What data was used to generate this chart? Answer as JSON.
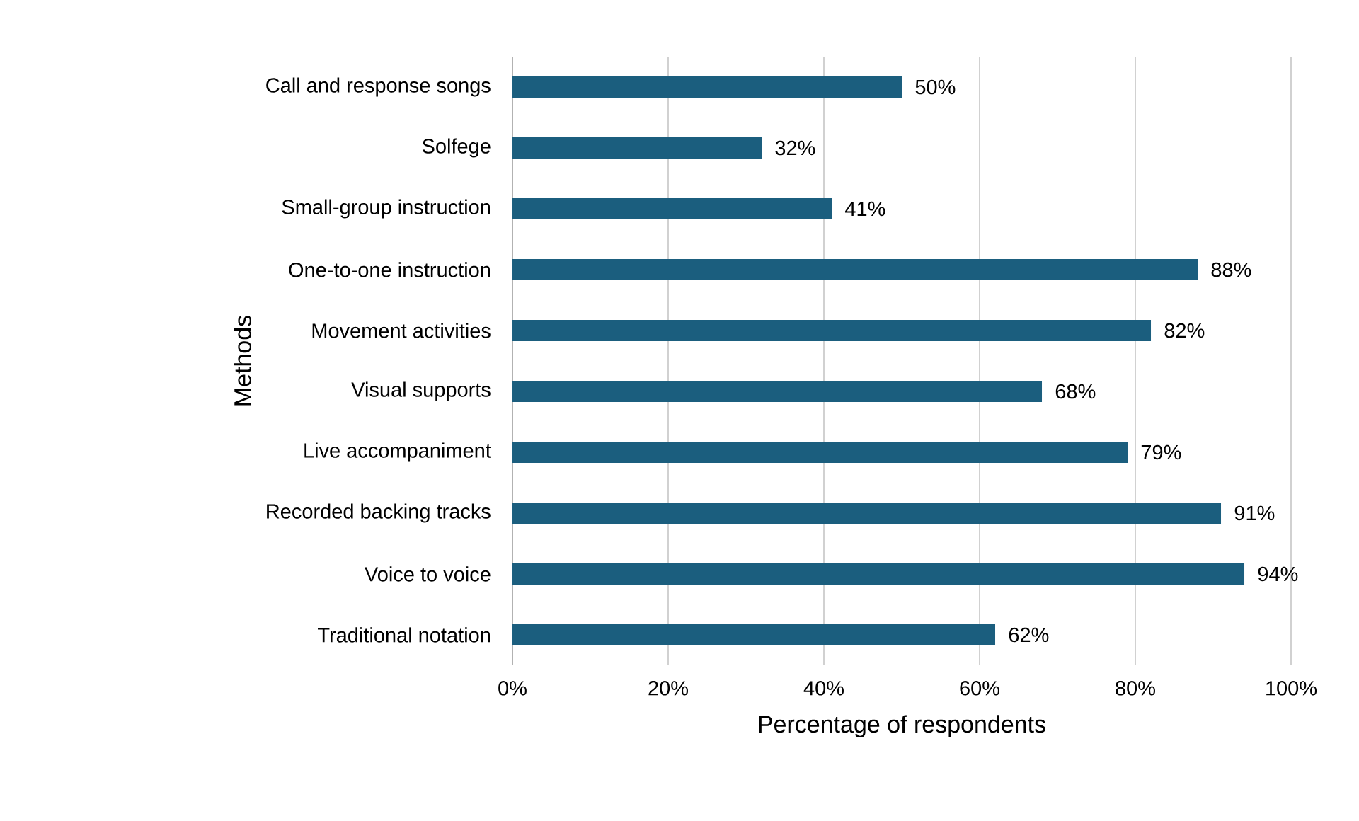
{
  "chart_data": {
    "type": "bar",
    "orientation": "horizontal",
    "xlabel": "Percentage of respondents",
    "ylabel": "Methods",
    "categories": [
      "Call and response songs",
      "Solfege",
      "Small-group instruction",
      "One-to-one instruction",
      "Movement activities",
      "Visual supports",
      "Live accompaniment",
      "Recorded backing tracks",
      "Voice to voice",
      "Traditional notation"
    ],
    "values": [
      50,
      32,
      41,
      88,
      82,
      68,
      79,
      91,
      94,
      62
    ],
    "value_labels": [
      "50%",
      "32%",
      "41%",
      "88%",
      "82%",
      "68%",
      "79%",
      "91%",
      "94%",
      "62%"
    ],
    "color": "#1b5e7e",
    "xlim": [
      0,
      100
    ],
    "xticks": [
      {
        "value": 0,
        "label": "0%"
      },
      {
        "value": 20,
        "label": "20%"
      },
      {
        "value": 40,
        "label": "40%"
      },
      {
        "value": 60,
        "label": "60%"
      },
      {
        "value": 80,
        "label": "80%"
      },
      {
        "value": 100,
        "label": "100%"
      }
    ],
    "grid": "x"
  }
}
